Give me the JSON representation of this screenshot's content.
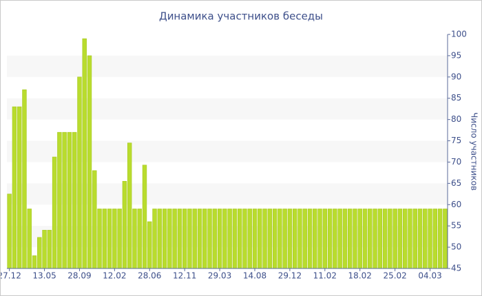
{
  "chart_data": {
    "type": "bar",
    "title": "Динамика участников беседы",
    "y_label": "Число участников",
    "categories": [
      "27.12",
      null,
      null,
      null,
      null,
      null,
      null,
      "13.05",
      null,
      null,
      null,
      null,
      null,
      null,
      "28.09",
      null,
      null,
      null,
      null,
      null,
      null,
      "12.02",
      null,
      null,
      null,
      null,
      null,
      null,
      "28.06",
      null,
      null,
      null,
      null,
      null,
      null,
      "12.11",
      null,
      null,
      null,
      null,
      null,
      null,
      "29.03",
      null,
      null,
      null,
      null,
      null,
      null,
      "14.08",
      null,
      null,
      null,
      null,
      null,
      null,
      "29.12",
      null,
      null,
      null,
      null,
      null,
      null,
      "11.02",
      null,
      null,
      null,
      null,
      null,
      null,
      "18.02",
      null,
      null,
      null,
      null,
      null,
      null,
      "25.02",
      null,
      null,
      null,
      null,
      null,
      null,
      "04.03",
      null,
      null,
      null
    ],
    "values": [
      62.5,
      83,
      83,
      87,
      59,
      48,
      52.3,
      54,
      54,
      71.2,
      77,
      77,
      77,
      77,
      90,
      99,
      95,
      68,
      59,
      59,
      59,
      59,
      59,
      65.5,
      74.5,
      59,
      59,
      69.3,
      56,
      59,
      59,
      59,
      59,
      59,
      59,
      59,
      59,
      59,
      59,
      59,
      59,
      59,
      59,
      59,
      59,
      59,
      59,
      59,
      59,
      59,
      59,
      59,
      59,
      59,
      59,
      59,
      59,
      59,
      59,
      59,
      59,
      59,
      59,
      59,
      59,
      59,
      59,
      59,
      59,
      59,
      59,
      59,
      59,
      59,
      59,
      59,
      59,
      59,
      59,
      59,
      59,
      59,
      59,
      59,
      59,
      59,
      59,
      59
    ],
    "color": "#b9dc2e",
    "ylim": [
      45,
      100
    ],
    "yticks": [
      45,
      50,
      55,
      60,
      65,
      70,
      75,
      80,
      85,
      90,
      95,
      100
    ]
  }
}
